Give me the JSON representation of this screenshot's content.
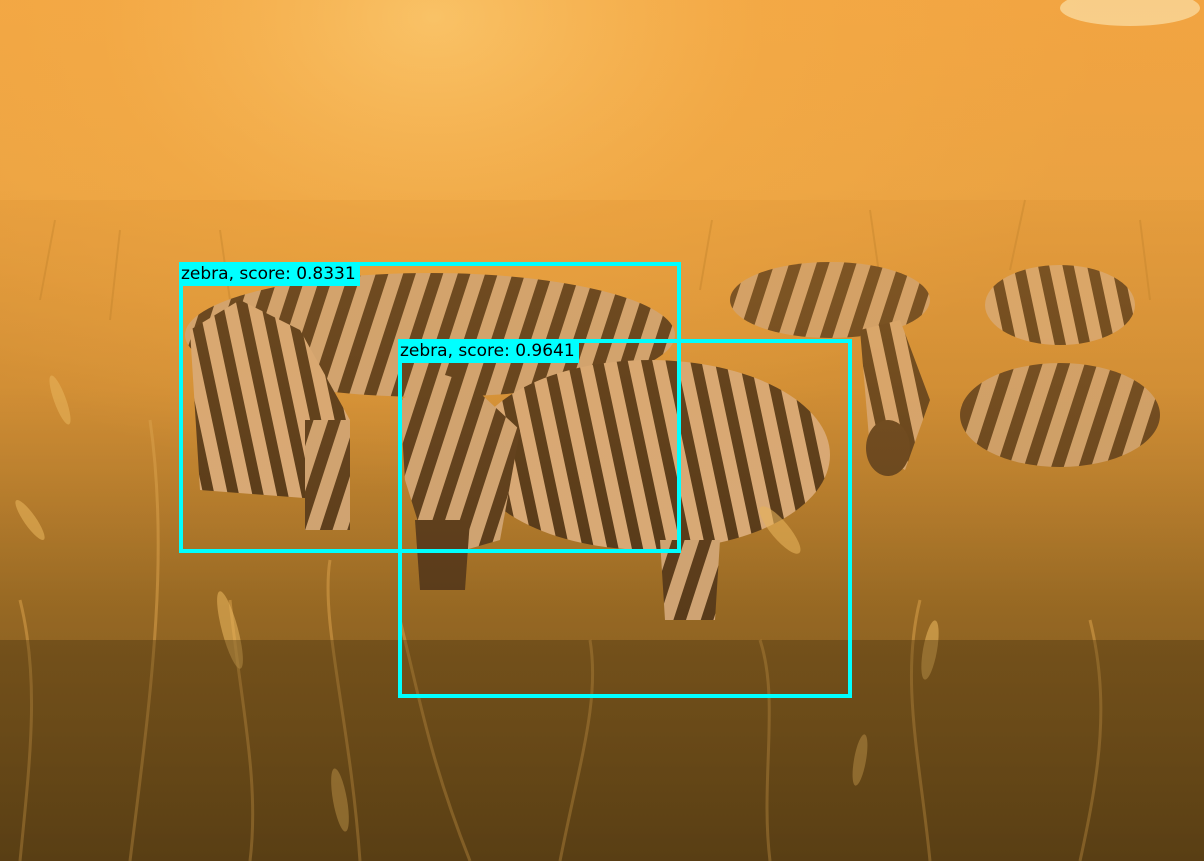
{
  "image": {
    "subject": "zebras-in-golden-grass",
    "colors": {
      "sky_glow": "#f7b24a",
      "grass_light": "#d8953a",
      "grass_dark": "#4a3712",
      "box": "#00ffff",
      "label_text": "#000000"
    }
  },
  "detections": [
    {
      "class": "zebra",
      "score": 0.8331,
      "label": "zebra, score: 0.8331"
    },
    {
      "class": "zebra",
      "score": 0.9641,
      "label": "zebra, score: 0.9641"
    }
  ]
}
